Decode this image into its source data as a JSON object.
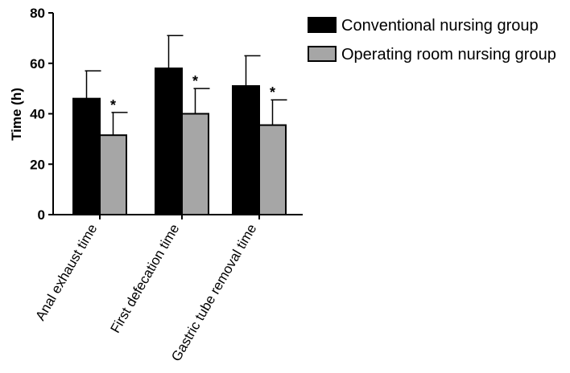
{
  "chart_data": {
    "type": "bar",
    "title": "",
    "xlabel": "",
    "ylabel": "Time (h)",
    "ylim": [
      0,
      80
    ],
    "yticks": [
      0,
      20,
      40,
      60,
      80
    ],
    "grid": false,
    "legend_position": "top-right",
    "categories": [
      "Anal exhaust time",
      "First defecation time",
      "Gastric tube removal time"
    ],
    "series": [
      {
        "name": "Conventional nursing group",
        "color": "#000000",
        "values": [
          46,
          58,
          51
        ],
        "errors": [
          11,
          13,
          12
        ]
      },
      {
        "name": "Operating room nursing group",
        "color": "#a6a6a6",
        "values": [
          31.5,
          40,
          35.5
        ],
        "errors": [
          9,
          10,
          10
        ]
      }
    ],
    "annotations": [
      "*",
      "*",
      "*"
    ]
  }
}
